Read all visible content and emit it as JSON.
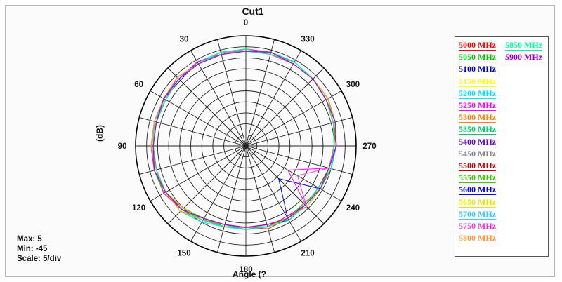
{
  "chart_data": {
    "type": "polar-line",
    "title": "Cut1",
    "xlabel": "Angle  (?",
    "ylabel": "(dB)",
    "scale": {
      "max": 5,
      "min": -45,
      "step": 5
    },
    "angle_labels": [
      {
        "deg": 0,
        "text": "0"
      },
      {
        "deg": 30,
        "text": "30"
      },
      {
        "deg": 60,
        "text": "60"
      },
      {
        "deg": 90,
        "text": "90"
      },
      {
        "deg": 120,
        "text": "120"
      },
      {
        "deg": 150,
        "text": "150"
      },
      {
        "deg": 180,
        "text": "180"
      },
      {
        "deg": 210,
        "text": "210"
      },
      {
        "deg": 240,
        "text": "240"
      },
      {
        "deg": 270,
        "text": "270"
      },
      {
        "deg": 300,
        "text": "300"
      },
      {
        "deg": 330,
        "text": "330"
      }
    ],
    "stats": {
      "max": "Max: 5",
      "min": "Min: -45",
      "scale": "Scale: 5/div"
    },
    "series": [
      {
        "name": "5000 MHz",
        "color": "#ff0000",
        "values": [
          -1,
          -1,
          -2,
          -2,
          -2,
          -3,
          -2,
          -2,
          -3,
          -3,
          -7,
          -7,
          -8,
          -6,
          -7,
          -8,
          -6,
          -5,
          -4,
          -3,
          -3,
          -2,
          -2,
          -1
        ]
      },
      {
        "name": "5050 MHz",
        "color": "#00cc00",
        "values": [
          -1,
          -2,
          -2,
          -2,
          -3,
          -3,
          -3,
          -2,
          -2,
          -4,
          -6,
          -8,
          -7,
          -7,
          -6,
          -7,
          -7,
          -6,
          -4,
          -4,
          -3,
          -2,
          -1,
          -1
        ]
      },
      {
        "name": "5100 MHz",
        "color": "#0000cc",
        "values": [
          -2,
          -2,
          -1,
          -3,
          -2,
          -2,
          -3,
          -3,
          -3,
          -4,
          -7,
          -7,
          -8,
          -7,
          -7,
          -24,
          -6,
          -6,
          -5,
          -3,
          -2,
          -2,
          -2,
          -1
        ]
      },
      {
        "name": "5150 MHz",
        "color": "#ffff00",
        "values": [
          -1,
          -2,
          -2,
          -2,
          -2,
          -3,
          -2,
          -3,
          -3,
          -4,
          -6,
          -8,
          -8,
          -8,
          -7,
          -7,
          -7,
          -5,
          -4,
          -3,
          -3,
          -2,
          -2,
          -2
        ]
      },
      {
        "name": "5200 MHz",
        "color": "#00e5ff",
        "values": [
          -2,
          -1,
          -1,
          -2,
          -2,
          -3,
          -3,
          -3,
          -3,
          -3,
          -5,
          -7,
          -7,
          -7,
          -8,
          -6,
          -6,
          -5,
          -5,
          -3,
          -3,
          -2,
          -1,
          -2
        ]
      },
      {
        "name": "5250 MHz",
        "color": "#ff00ff",
        "values": [
          -1,
          -2,
          -2,
          -1,
          -3,
          -2,
          -2,
          -2,
          -3,
          -4,
          -6,
          -8,
          -8,
          -8,
          -7,
          -6,
          -23,
          -6,
          -5,
          -4,
          -3,
          -2,
          -2,
          -1
        ]
      },
      {
        "name": "5300 MHz",
        "color": "#ff8000",
        "values": [
          -2,
          -2,
          -2,
          -2,
          -2,
          -2,
          -3,
          -3,
          -2,
          -5,
          -6,
          -7,
          -8,
          -7,
          -7,
          -7,
          -6,
          -6,
          -5,
          -4,
          -3,
          -2,
          -2,
          -1
        ]
      },
      {
        "name": "5350 MHz",
        "color": "#00cc66",
        "values": [
          -1,
          -1,
          -2,
          -2,
          -2,
          -3,
          -2,
          -3,
          -3,
          -4,
          -6,
          -7,
          -8,
          -8,
          -6,
          -7,
          -7,
          -5,
          -4,
          -3,
          -2,
          -2,
          -2,
          -2
        ]
      },
      {
        "name": "5400 MHz",
        "color": "#6600cc",
        "values": [
          -2,
          -2,
          -1,
          -2,
          -3,
          -3,
          -3,
          -2,
          -3,
          -4,
          -7,
          -8,
          -7,
          -7,
          -8,
          -7,
          -6,
          -6,
          -4,
          -4,
          -3,
          -2,
          -1,
          -1
        ]
      },
      {
        "name": "5450 MHz",
        "color": "#808080",
        "values": [
          -1,
          -2,
          -2,
          -2,
          -2,
          -2,
          -3,
          -3,
          -3,
          -3,
          -6,
          -7,
          -8,
          -7,
          -7,
          -6,
          -6,
          -5,
          -5,
          -3,
          -3,
          -2,
          -2,
          -2
        ]
      },
      {
        "name": "5500 MHz",
        "color": "#cc0000",
        "values": [
          -2,
          -1,
          -2,
          -1,
          -2,
          -3,
          -2,
          -3,
          -2,
          -4,
          -6,
          -8,
          -8,
          -8,
          -7,
          -7,
          -7,
          -6,
          -4,
          -4,
          -2,
          -2,
          -2,
          -1
        ]
      },
      {
        "name": "5550 MHz",
        "color": "#33cc00",
        "values": [
          -1,
          -2,
          -2,
          -2,
          -3,
          -2,
          -3,
          -2,
          -3,
          -5,
          -7,
          -7,
          -7,
          -7,
          -7,
          -8,
          -6,
          -6,
          -5,
          -3,
          -3,
          -2,
          -1,
          -2
        ]
      },
      {
        "name": "5600 MHz",
        "color": "#0000ff",
        "values": [
          -2,
          -2,
          -1,
          -2,
          -2,
          -3,
          -3,
          -3,
          -3,
          -4,
          -6,
          -8,
          -8,
          -8,
          -6,
          -7,
          -7,
          -5,
          -4,
          -3,
          -3,
          -2,
          -2,
          -1
        ]
      },
      {
        "name": "5650 MHz",
        "color": "#e6e600",
        "values": [
          -1,
          -2,
          -2,
          -2,
          -2,
          -3,
          -2,
          -3,
          -3,
          -3,
          -6,
          -7,
          -8,
          -7,
          -7,
          -6,
          -6,
          -6,
          -5,
          -4,
          -2,
          -2,
          -2,
          -2
        ]
      },
      {
        "name": "5700 MHz",
        "color": "#33ccff",
        "values": [
          -2,
          -1,
          -2,
          -2,
          -3,
          -2,
          -3,
          -2,
          -3,
          -4,
          -7,
          -8,
          -7,
          -8,
          -7,
          -7,
          -7,
          -5,
          -4,
          -3,
          -3,
          -2,
          -1,
          -1
        ]
      },
      {
        "name": "5750 MHz",
        "color": "#ff33cc",
        "values": [
          -1,
          -2,
          -1,
          -2,
          -2,
          -3,
          -3,
          -3,
          -2,
          -4,
          -6,
          -7,
          -8,
          -7,
          -8,
          -6,
          -18,
          -6,
          -5,
          -4,
          -3,
          -2,
          -2,
          -2
        ]
      },
      {
        "name": "5800 MHz",
        "color": "#ff9933",
        "values": [
          -2,
          -2,
          -2,
          -1,
          -2,
          -2,
          -2,
          -3,
          -3,
          -5,
          -6,
          -8,
          -8,
          -8,
          -7,
          -7,
          -6,
          -6,
          -4,
          -3,
          -2,
          -2,
          -2,
          -1
        ]
      },
      {
        "name": "5850 MHz",
        "color": "#00ff99",
        "values": [
          -1,
          -1,
          -2,
          -2,
          -3,
          -3,
          -3,
          -3,
          -3,
          -4,
          -6,
          -7,
          -7,
          -7,
          -6,
          -7,
          -7,
          -5,
          -5,
          -4,
          -3,
          -2,
          -1,
          -2
        ]
      },
      {
        "name": "5900 MHz",
        "color": "#9900cc",
        "values": [
          -2,
          -2,
          -2,
          -2,
          -2,
          -3,
          -3,
          -2,
          -3,
          -4,
          -7,
          -8,
          -8,
          -8,
          -7,
          -7,
          -6,
          -6,
          -4,
          -3,
          -3,
          -2,
          -2,
          -1
        ]
      }
    ]
  }
}
